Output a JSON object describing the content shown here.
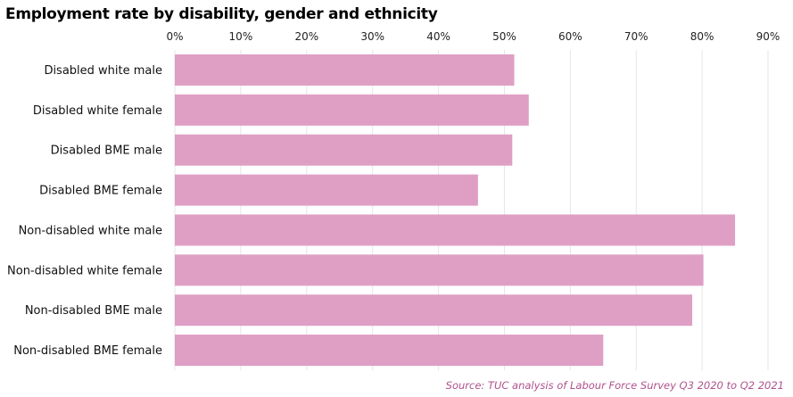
{
  "title": "Employment rate by disability, gender and ethnicity",
  "source": "Source: TUC analysis of Labour Force Survey Q3 2020 to Q2 2021",
  "colors": {
    "bar": "#df9fc5",
    "grid": "#e6e6e6",
    "source": "#b0528e"
  },
  "chart_data": {
    "type": "bar",
    "orientation": "horizontal",
    "categories": [
      "Disabled white male",
      "Disabled white female",
      "Disabled BME male",
      "Disabled BME female",
      "Non-disabled white male",
      "Non-disabled white female",
      "Non-disabled BME male",
      "Non-disabled BME female"
    ],
    "values": [
      51.5,
      53.7,
      51.2,
      46.0,
      85.0,
      80.2,
      78.5,
      65.0
    ],
    "xlim": [
      0,
      90
    ],
    "ticks": [
      0,
      10,
      20,
      30,
      40,
      50,
      60,
      70,
      80,
      90
    ],
    "tick_labels": [
      "0%",
      "10%",
      "20%",
      "30%",
      "40%",
      "50%",
      "60%",
      "70%",
      "80%",
      "90%"
    ],
    "axis_position": "top",
    "grid": true
  }
}
